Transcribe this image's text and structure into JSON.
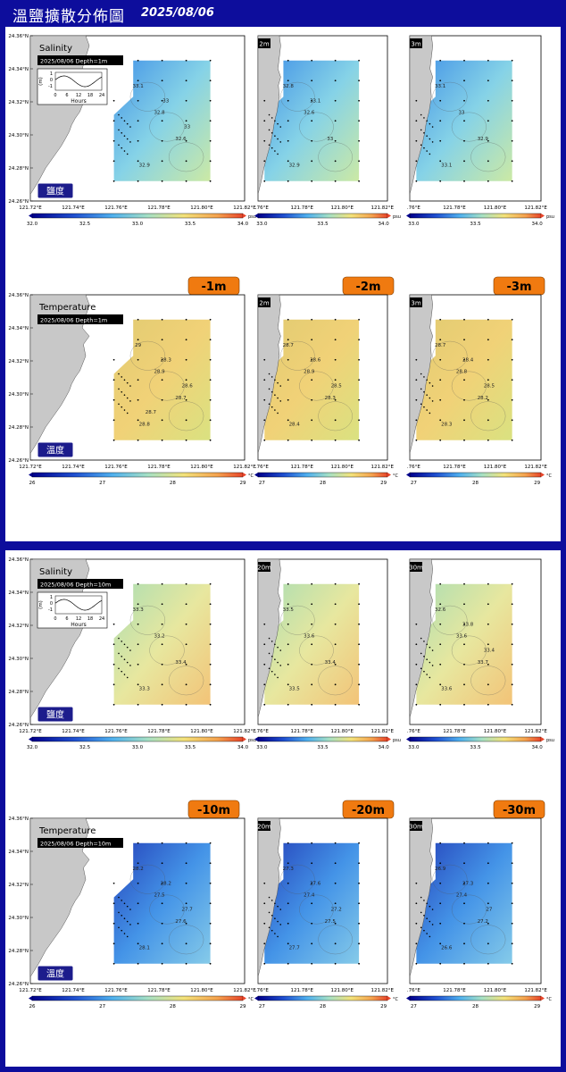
{
  "header": {
    "title": "溫鹽擴散分佈圖",
    "date": "2025/08/06"
  },
  "colors": {
    "frame": "#0d0d9c",
    "land": "#c8c8c8",
    "badge": "#1c1c8c",
    "depth_tab": "#f07a10"
  },
  "axes": {
    "lat_ticks": [
      "24.36°N",
      "24.34°N",
      "24.32°N",
      "24.30°N",
      "24.28°N",
      "24.26°N"
    ],
    "lon_ticks": [
      "121.72°E",
      "121.74°E",
      "121.76°E",
      "121.78°E",
      "121.80°E",
      "121.82°E"
    ],
    "lon_ticks_cropped": [
      ".76°E",
      "121.78°E",
      "121.80°E",
      "121.82°E"
    ],
    "lat_range": [
      24.255,
      24.36
    ],
    "lon_range": [
      121.72,
      121.83
    ]
  },
  "tide": {
    "ylabel": "(m)",
    "yticks": [
      "1",
      "0",
      "-1"
    ],
    "xticks": [
      "0",
      "6",
      "12",
      "18",
      "24"
    ],
    "xlabel": "Hours"
  },
  "salinity_scale": {
    "ticks": [
      "32.0",
      "32.5",
      "33.0",
      "33.5",
      "34.0"
    ],
    "cropped_ticks": [
      "33.0",
      "33.5",
      "34.0"
    ],
    "unit": "psu"
  },
  "temperature_scale": {
    "ticks": [
      "26",
      "27",
      "28",
      "29"
    ],
    "cropped_ticks": [
      "27",
      "28",
      "29"
    ],
    "unit": "°C"
  },
  "chart_data": [
    {
      "type": "heatmap",
      "variable": "Salinity",
      "badge": "鹽度",
      "info": "2025/08/06 Depth=1m",
      "depth_tabs": [
        "1m",
        "2m",
        "3m"
      ],
      "contour_labels": [
        [
          "33.1",
          "32.8",
          "32.6",
          "32.9",
          "33",
          "33"
        ],
        [
          "32.8",
          "32.6",
          "33",
          "32.9",
          "33.1"
        ],
        [
          "33.1",
          "33",
          "32.9",
          "33.1"
        ]
      ]
    },
    {
      "type": "heatmap",
      "variable": "Temperature",
      "badge": "溫度",
      "info": "2025/08/06 Depth=1m",
      "depth_tabs": [
        "-1m",
        "-2m",
        "-3m"
      ],
      "contour_labels": [
        [
          "29",
          "28.9",
          "28.7",
          "28.8",
          "28.3",
          "28.6",
          "28.7"
        ],
        [
          "28.7",
          "28.9",
          "28.3",
          "28.4",
          "28.6",
          "28.5"
        ],
        [
          "28.7",
          "28.8",
          "28.2",
          "28.3",
          "28.4",
          "28.5"
        ]
      ]
    },
    {
      "type": "heatmap",
      "variable": "Salinity",
      "badge": "鹽度",
      "info": "2025/08/06 Depth=10m",
      "depth_tabs": [
        "10m",
        "20m",
        "30m"
      ],
      "contour_labels": [
        [
          "33.3",
          "33.2",
          "33.4",
          "33.3"
        ],
        [
          "33.5",
          "33.6",
          "33.4",
          "33.5"
        ],
        [
          "32.6",
          "33.6",
          "33.7",
          "33.6",
          "33.8",
          "33.4"
        ]
      ]
    },
    {
      "type": "heatmap",
      "variable": "Temperature",
      "badge": "溫度",
      "info": "2025/08/06 Depth=10m",
      "depth_tabs": [
        "-10m",
        "-20m",
        "-30m"
      ],
      "contour_labels": [
        [
          "28.2",
          "27.5",
          "27.6",
          "28.1",
          "28.2",
          "27.7"
        ],
        [
          "27.3",
          "27.4",
          "27.5",
          "27.7",
          "27.6",
          "27.2"
        ],
        [
          "26.9",
          "27.4",
          "27.2",
          "26.6",
          "27.3",
          "27"
        ]
      ]
    }
  ]
}
